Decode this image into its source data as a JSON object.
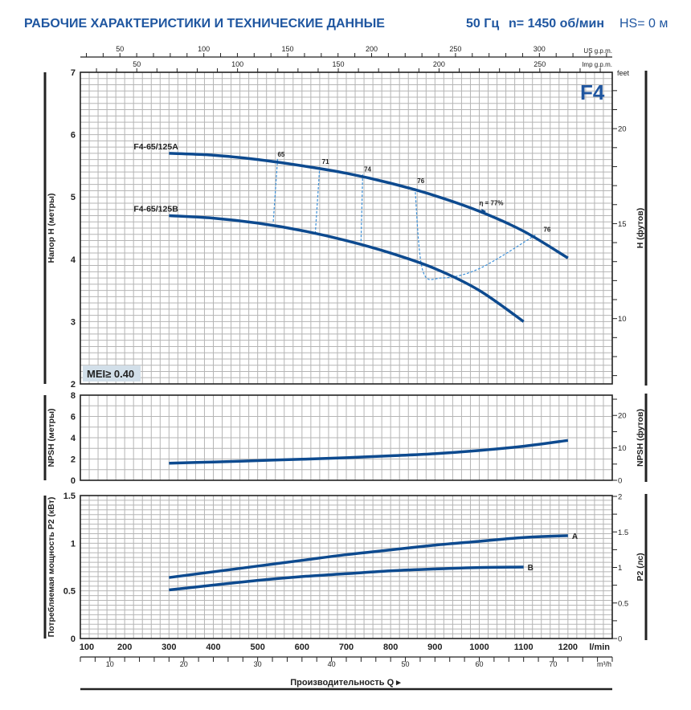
{
  "header": {
    "title": "РАБОЧИЕ ХАРАКТЕРИСТИКИ И ТЕХНИЧЕСКИЕ ДАННЫЕ",
    "frequency": "50 Гц",
    "speed": "n= 1450 об/мин",
    "hs": "HS= 0 м"
  },
  "colors": {
    "curve": "#0d4a8f",
    "efficiency": "#3a8fd8",
    "grid": "#b5b5b5",
    "title": "#1f56a0",
    "badge_bg": "#d2dfe9"
  },
  "chart_data": [
    {
      "type": "line",
      "name": "head",
      "title": "F4",
      "ylabel": "Напор H (метры)",
      "ylabel_right": "H (футов)",
      "ylim": [
        2,
        7
      ],
      "yticks": [
        2,
        3,
        4,
        5,
        6,
        7
      ],
      "ylim_right_feet": [
        6.56,
        22.97
      ],
      "yticks_right_labeled": [
        10,
        15,
        20
      ],
      "right_unit": "feet",
      "badge": "MEI≥ 0.40",
      "grid": true,
      "series": [
        {
          "name": "F4-65/125A",
          "x": [
            300,
            400,
            500,
            600,
            700,
            800,
            900,
            1000,
            1100,
            1200
          ],
          "y": [
            5.7,
            5.67,
            5.6,
            5.5,
            5.38,
            5.22,
            5.02,
            4.77,
            4.45,
            4.02
          ]
        },
        {
          "name": "F4-65/125B",
          "x": [
            300,
            400,
            500,
            600,
            700,
            800,
            900,
            1000,
            1100
          ],
          "y": [
            4.7,
            4.66,
            4.58,
            4.46,
            4.3,
            4.1,
            3.85,
            3.5,
            3.0
          ]
        }
      ],
      "efficiency_lines": [
        {
          "label": "65",
          "points": [
            [
              545,
              5.61
            ],
            [
              535,
              4.58
            ]
          ]
        },
        {
          "label": "71",
          "points": [
            [
              640,
              5.48
            ],
            [
              630,
              4.41
            ]
          ]
        },
        {
          "label": "74",
          "points": [
            [
              737,
              5.36
            ],
            [
              733,
              4.24
            ]
          ]
        },
        {
          "label": "76",
          "points": [
            [
              855,
              5.14
            ],
            [
              872,
              3.83
            ],
            [
              915,
              3.7
            ],
            [
              1000,
              3.85
            ],
            [
              1127,
              4.39
            ]
          ]
        }
      ],
      "efficiency_labels": [
        {
          "text": "65",
          "x": 545,
          "y": 5.65
        },
        {
          "text": "71",
          "x": 645,
          "y": 5.53
        },
        {
          "text": "74",
          "x": 740,
          "y": 5.41
        },
        {
          "text": "76",
          "x": 860,
          "y": 5.22
        },
        {
          "text": "η = 77%",
          "x": 1000,
          "y": 4.87
        },
        {
          "text": "76",
          "x": 1145,
          "y": 4.44
        }
      ],
      "efficiency_marker": {
        "x": 1010,
        "y": 4.77
      }
    },
    {
      "type": "line",
      "name": "npsh",
      "ylabel": "NPSH (метры)",
      "ylabel_right": "NPSH (футов)",
      "ylim": [
        0,
        8
      ],
      "yticks": [
        0,
        2,
        4,
        6,
        8
      ],
      "yticks_right_labeled": [
        0,
        10,
        20
      ],
      "grid": true,
      "series": [
        {
          "name": "NPSH",
          "x": [
            300,
            400,
            500,
            600,
            700,
            800,
            900,
            1000,
            1100,
            1200
          ],
          "y": [
            1.6,
            1.72,
            1.85,
            1.98,
            2.12,
            2.3,
            2.5,
            2.8,
            3.2,
            3.75
          ]
        }
      ]
    },
    {
      "type": "line",
      "name": "power",
      "ylabel": "Потребляемая мощность P2 (кВт)",
      "ylabel_right": "P2 (лс)",
      "ylim": [
        0,
        1.5
      ],
      "yticks": [
        0,
        0.5,
        1,
        1.5
      ],
      "yticks_right_labeled": [
        0,
        0.5,
        1,
        1.5,
        2
      ],
      "grid": true,
      "series": [
        {
          "name": "A",
          "x": [
            300,
            400,
            500,
            600,
            700,
            800,
            900,
            1000,
            1100,
            1200
          ],
          "y": [
            0.64,
            0.7,
            0.76,
            0.82,
            0.88,
            0.93,
            0.98,
            1.02,
            1.06,
            1.08
          ]
        },
        {
          "name": "B",
          "x": [
            300,
            400,
            500,
            600,
            700,
            800,
            900,
            1000,
            1100
          ],
          "y": [
            0.51,
            0.56,
            0.61,
            0.65,
            0.68,
            0.71,
            0.73,
            0.745,
            0.75
          ]
        }
      ]
    }
  ],
  "x_axis": {
    "unit": "l/min",
    "xlim": [
      100,
      1300
    ],
    "ticks": [
      100,
      200,
      300,
      400,
      500,
      600,
      700,
      800,
      900,
      1000,
      1100,
      1200
    ],
    "title": "Производительность Q"
  },
  "x_axis_m3h": {
    "unit": "m³/h",
    "ticks": [
      10,
      20,
      30,
      40,
      50,
      60,
      70
    ]
  },
  "x_axis_usgpm": {
    "unit": "US g.p.m.",
    "ticks": [
      50,
      100,
      150,
      200,
      250,
      300
    ]
  },
  "x_axis_impgpm": {
    "unit": "Imp g.p.m.",
    "ticks": [
      50,
      100,
      150,
      200,
      250
    ]
  }
}
